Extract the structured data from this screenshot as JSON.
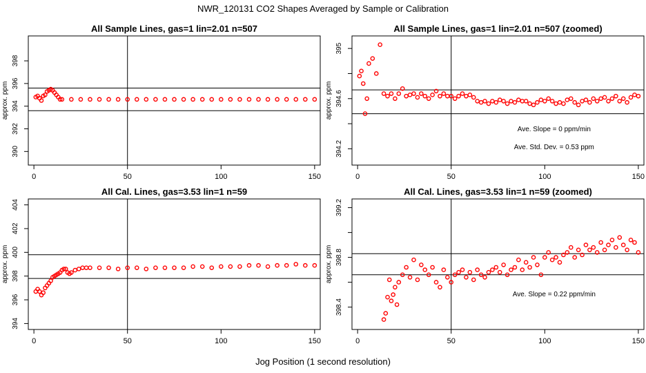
{
  "page": {
    "title": "NWR_120131  CO2 Shapes Averaged by Sample or Calibration",
    "x_caption": "Jog Position (1 second resolution)"
  },
  "colors": {
    "points": "#ff0000",
    "axes": "#000000",
    "background": "#ffffff"
  },
  "chart_data": [
    {
      "type": "scatter",
      "title": "All Sample Lines, gas=1 lin=2.01 n=507",
      "ylabel": "approx. ppm",
      "xlim": [
        -3,
        153
      ],
      "ylim": [
        388.8,
        400.2
      ],
      "xticks": [
        0,
        50,
        100,
        150
      ],
      "yticks": [
        390,
        392,
        394,
        396,
        398
      ],
      "hlines": [
        395.6,
        393.6
      ],
      "vline": 50,
      "annotations": [],
      "series": [
        {
          "x": [
            1,
            2,
            3,
            4,
            5,
            6,
            7,
            8,
            9,
            10,
            11,
            12,
            13,
            14,
            15,
            20,
            25,
            30,
            35,
            40,
            45,
            50,
            55,
            60,
            65,
            70,
            75,
            80,
            85,
            90,
            95,
            100,
            105,
            110,
            115,
            120,
            125,
            130,
            135,
            140,
            145,
            150
          ],
          "y": [
            394.8,
            394.9,
            394.7,
            394.5,
            394.9,
            395.0,
            395.3,
            395.4,
            395.5,
            395.4,
            395.2,
            395.0,
            394.8,
            394.6,
            394.6,
            394.6,
            394.6,
            394.6,
            394.6,
            394.6,
            394.6,
            394.6,
            394.6,
            394.6,
            394.6,
            394.6,
            394.6,
            394.6,
            394.6,
            394.6,
            394.6,
            394.6,
            394.6,
            394.6,
            394.6,
            394.6,
            394.6,
            394.6,
            394.6,
            394.6,
            394.6,
            394.6
          ]
        }
      ]
    },
    {
      "type": "scatter",
      "title": "All Sample Lines, gas=1 lin=2.01 n=507 (zoomed)",
      "ylabel": "approx. ppm",
      "xlim": [
        -3,
        153
      ],
      "ylim": [
        394.07,
        395.1
      ],
      "xticks": [
        0,
        50,
        100,
        150
      ],
      "yticks": [
        394.2,
        394.4,
        394.6,
        394.8,
        395.0
      ],
      "ytick_labels_shown": [
        394.2,
        394.6,
        395.0
      ],
      "hlines": [
        394.67,
        394.48
      ],
      "vline": 50,
      "annotations": [
        "Ave. Slope =  0  ppm/min",
        "Ave. Std. Dev. =  0.53  ppm"
      ],
      "series": [
        {
          "x": [
            1,
            2,
            3,
            4,
            5,
            6,
            8,
            10,
            12,
            14,
            16,
            18,
            20,
            22,
            24,
            26,
            28,
            30,
            32,
            34,
            36,
            38,
            40,
            42,
            44,
            46,
            48,
            50,
            52,
            54,
            56,
            58,
            60,
            62,
            64,
            66,
            68,
            70,
            72,
            74,
            76,
            78,
            80,
            82,
            84,
            86,
            88,
            90,
            92,
            94,
            96,
            98,
            100,
            102,
            104,
            106,
            108,
            110,
            112,
            114,
            116,
            118,
            120,
            122,
            124,
            126,
            128,
            130,
            132,
            134,
            136,
            138,
            140,
            142,
            144,
            146,
            148,
            150
          ],
          "y": [
            394.78,
            394.82,
            394.72,
            394.48,
            394.6,
            394.88,
            394.92,
            394.8,
            395.03,
            394.64,
            394.62,
            394.64,
            394.6,
            394.64,
            394.68,
            394.62,
            394.63,
            394.64,
            394.61,
            394.64,
            394.62,
            394.6,
            394.63,
            394.66,
            394.62,
            394.64,
            394.62,
            394.62,
            394.6,
            394.62,
            394.64,
            394.62,
            394.63,
            394.61,
            394.58,
            394.57,
            394.58,
            394.56,
            394.58,
            394.57,
            394.59,
            394.58,
            394.56,
            394.58,
            394.57,
            394.59,
            394.58,
            394.58,
            394.56,
            394.55,
            394.57,
            394.59,
            394.58,
            394.6,
            394.58,
            394.56,
            394.57,
            394.56,
            394.59,
            394.6,
            394.57,
            394.55,
            394.58,
            394.59,
            394.57,
            394.6,
            394.58,
            394.6,
            394.61,
            394.58,
            394.6,
            394.62,
            394.58,
            394.6,
            394.57,
            394.61,
            394.63,
            394.62
          ]
        }
      ]
    },
    {
      "type": "scatter",
      "title": "All Cal. Lines, gas=3.53 lin=1 n=59",
      "ylabel": "approx. ppm",
      "xlim": [
        -3,
        153
      ],
      "ylim": [
        393.5,
        404.5
      ],
      "xticks": [
        0,
        50,
        100,
        150
      ],
      "yticks": [
        394,
        396,
        398,
        400,
        402,
        404
      ],
      "hlines": [
        399.8,
        397.8
      ],
      "vline": 50,
      "annotations": [],
      "series": [
        {
          "x": [
            1,
            2,
            3,
            4,
            5,
            6,
            7,
            8,
            9,
            10,
            11,
            12,
            13,
            14,
            15,
            16,
            17,
            18,
            19,
            20,
            22,
            24,
            26,
            28,
            30,
            35,
            40,
            45,
            50,
            55,
            60,
            65,
            70,
            75,
            80,
            85,
            90,
            95,
            100,
            105,
            110,
            115,
            120,
            125,
            130,
            135,
            140,
            145,
            150
          ],
          "y": [
            396.7,
            396.9,
            396.7,
            396.4,
            396.6,
            397.0,
            397.2,
            397.4,
            397.6,
            397.9,
            398.0,
            398.1,
            398.2,
            398.3,
            398.5,
            398.6,
            398.6,
            398.3,
            398.2,
            398.3,
            398.5,
            398.6,
            398.7,
            398.7,
            398.7,
            398.7,
            398.7,
            398.6,
            398.7,
            398.7,
            398.6,
            398.7,
            398.7,
            398.7,
            398.7,
            398.8,
            398.8,
            398.7,
            398.8,
            398.8,
            398.8,
            398.9,
            398.9,
            398.8,
            398.9,
            398.9,
            399.0,
            398.9,
            398.9
          ]
        }
      ]
    },
    {
      "type": "scatter",
      "title": "All Cal. Lines, gas=3.53 lin=1 n=59 (zoomed)",
      "ylabel": "approx. ppm",
      "xlim": [
        -3,
        153
      ],
      "ylim": [
        398.22,
        399.27
      ],
      "xticks": [
        0,
        50,
        100,
        150
      ],
      "yticks": [
        398.4,
        398.6,
        398.8,
        399.0,
        399.2
      ],
      "ytick_labels_shown": [
        398.4,
        398.8,
        399.2
      ],
      "hlines": [
        398.83,
        398.66
      ],
      "vline": 50,
      "annotations": [
        "Ave. Slope =  0.22  ppm/min"
      ],
      "series": [
        {
          "x": [
            14,
            15,
            16,
            17,
            18,
            19,
            20,
            21,
            22,
            24,
            26,
            28,
            30,
            32,
            34,
            36,
            38,
            40,
            42,
            44,
            46,
            48,
            50,
            52,
            54,
            56,
            58,
            60,
            62,
            64,
            66,
            68,
            70,
            72,
            74,
            76,
            78,
            80,
            82,
            84,
            86,
            88,
            90,
            92,
            94,
            96,
            98,
            100,
            102,
            104,
            106,
            108,
            110,
            112,
            114,
            116,
            118,
            120,
            122,
            124,
            126,
            128,
            130,
            132,
            134,
            136,
            138,
            140,
            142,
            144,
            146,
            148,
            150
          ],
          "y": [
            398.3,
            398.35,
            398.48,
            398.62,
            398.45,
            398.5,
            398.56,
            398.42,
            398.6,
            398.66,
            398.72,
            398.64,
            398.78,
            398.62,
            398.74,
            398.7,
            398.66,
            398.72,
            398.6,
            398.56,
            398.7,
            398.64,
            398.6,
            398.66,
            398.68,
            398.7,
            398.64,
            398.68,
            398.62,
            398.7,
            398.66,
            398.64,
            398.68,
            398.7,
            398.72,
            398.68,
            398.74,
            398.66,
            398.7,
            398.72,
            398.78,
            398.7,
            398.76,
            398.72,
            398.8,
            398.74,
            398.66,
            398.8,
            398.84,
            398.78,
            398.8,
            398.76,
            398.82,
            398.84,
            398.88,
            398.8,
            398.86,
            398.82,
            398.9,
            398.86,
            398.88,
            398.84,
            398.92,
            398.86,
            398.9,
            398.94,
            398.88,
            398.96,
            398.9,
            398.86,
            398.94,
            398.92,
            398.84
          ]
        }
      ]
    }
  ]
}
